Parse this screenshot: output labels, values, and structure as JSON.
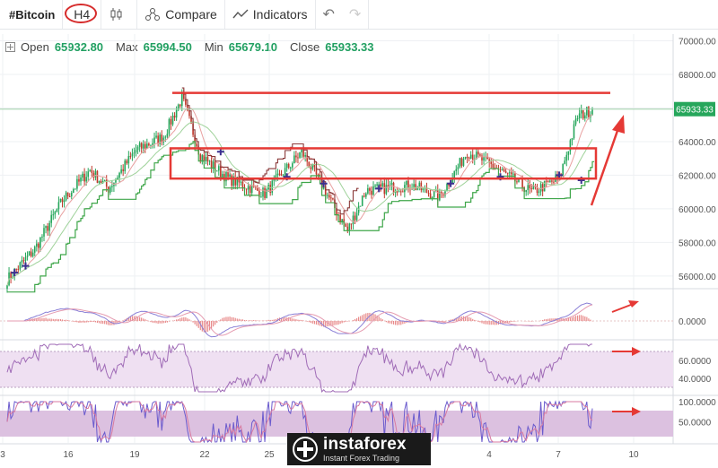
{
  "toolbar": {
    "symbol": "#Bitcoin",
    "timeframe": "H4",
    "compare_label": "Compare",
    "indicators_label": "Indicators",
    "undo_icon": "undo-icon",
    "redo_icon": "redo-icon"
  },
  "legend": {
    "open_label": "Open",
    "open_value": "65932.80",
    "max_label": "Max",
    "max_value": "65994.50",
    "min_label": "Min",
    "min_value": "65679.10",
    "close_label": "Close",
    "close_value": "65933.33"
  },
  "colors": {
    "up": "#26a65b",
    "down": "#c0392b",
    "annotation": "#e53935",
    "supertrend": "#3fa64a",
    "resistance": "#8b3a3a",
    "ma_fast": "#e8a0a0",
    "ma_slow": "#9fd29a"
  },
  "chart_data": [
    {
      "type": "candlestick",
      "name": "price",
      "x_tick_labels": [
        "3",
        "16",
        "19",
        "22",
        "25",
        "4",
        "7",
        "10"
      ],
      "y_ticks": [
        56000,
        58000,
        60000,
        62000,
        64000,
        66000,
        68000,
        70000
      ],
      "y_tick_labels": [
        "56000.00",
        "58000.00",
        "60000.00",
        "62000.00",
        "64000.00",
        "66000.00",
        "68000.00",
        "70000.00"
      ],
      "ylim": [
        55300,
        70400
      ],
      "last_price_label": "65933.33",
      "last_price": 65933.33,
      "approx_close_path": [
        [
          0,
          55800
        ],
        [
          15,
          57600
        ],
        [
          30,
          60500
        ],
        [
          45,
          62300
        ],
        [
          55,
          61200
        ],
        [
          70,
          63500
        ],
        [
          85,
          64300
        ],
        [
          95,
          66600
        ],
        [
          105,
          63200
        ],
        [
          120,
          61800
        ],
        [
          140,
          60900
        ],
        [
          160,
          63400
        ],
        [
          170,
          61600
        ],
        [
          185,
          58700
        ],
        [
          195,
          61100
        ],
        [
          220,
          61400
        ],
        [
          235,
          60700
        ],
        [
          250,
          63400
        ],
        [
          265,
          62500
        ],
        [
          285,
          61000
        ],
        [
          300,
          61800
        ],
        [
          310,
          65500
        ],
        [
          318,
          65900
        ]
      ],
      "annotations": {
        "upper_line": 66900,
        "box_top": 63600,
        "box_bottom": 61800,
        "arrow": "up"
      }
    },
    {
      "type": "line",
      "name": "macd",
      "y_tick_labels": [
        "0.0000"
      ],
      "annotation_arrow": "up"
    },
    {
      "type": "line",
      "name": "rsi",
      "y_tick_labels": [
        "60.0000",
        "40.0000"
      ],
      "annotation_arrow": "right"
    },
    {
      "type": "line",
      "name": "stochastic",
      "y_tick_labels": [
        "100.0000",
        "50.0000"
      ],
      "annotation_arrow": "right"
    }
  ],
  "watermark": {
    "brand": "instaforex",
    "tagline": "Instant Forex Trading"
  }
}
